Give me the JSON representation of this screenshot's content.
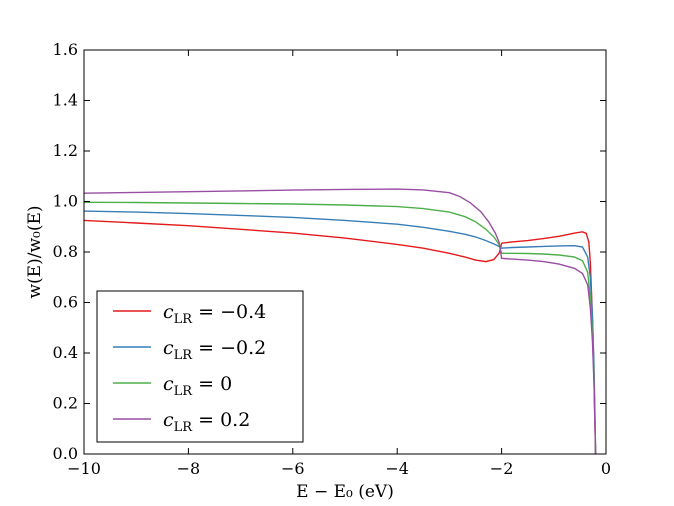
{
  "chart_data": {
    "type": "line",
    "xlabel": "E − E₀ (eV)",
    "ylabel": "w(E)/w₀(E)",
    "xlim": [
      -10,
      0
    ],
    "ylim": [
      0,
      1.6
    ],
    "xticks": [
      "−10",
      "−8",
      "−6",
      "−4",
      "−2",
      "0"
    ],
    "yticks": [
      "0.0",
      "0.2",
      "0.4",
      "0.6",
      "0.8",
      "1.0",
      "1.2",
      "1.4",
      "1.6"
    ],
    "legend_position": "lower-left",
    "series": [
      {
        "name": "c_LR = −0.4",
        "color": "#e41a1c",
        "x": [
          -10,
          -9,
          -8,
          -7,
          -6,
          -5,
          -4,
          -3.5,
          -3,
          -2.7,
          -2.5,
          -2.3,
          -2.15,
          -2.05,
          -2.02,
          -2.0,
          -1.8,
          -1.5,
          -1.2,
          -0.9,
          -0.6,
          -0.45,
          -0.38,
          -0.33,
          -0.3,
          -0.27,
          -0.24,
          -0.22,
          -0.2
        ],
        "y": [
          0.925,
          0.915,
          0.904,
          0.89,
          0.875,
          0.855,
          0.83,
          0.815,
          0.795,
          0.78,
          0.768,
          0.762,
          0.77,
          0.795,
          0.815,
          0.835,
          0.84,
          0.845,
          0.853,
          0.862,
          0.875,
          0.88,
          0.874,
          0.84,
          0.76,
          0.6,
          0.4,
          0.2,
          0.0
        ]
      },
      {
        "name": "c_LR = −0.2",
        "color": "#377eb8",
        "x": [
          -10,
          -9,
          -8,
          -7,
          -6,
          -5,
          -4,
          -3.5,
          -3,
          -2.7,
          -2.5,
          -2.3,
          -2.15,
          -2.05,
          -2.0,
          -1.8,
          -1.5,
          -1.2,
          -0.9,
          -0.6,
          -0.45,
          -0.35,
          -0.3,
          -0.26,
          -0.23,
          -0.21,
          -0.2
        ],
        "y": [
          0.962,
          0.958,
          0.952,
          0.945,
          0.937,
          0.925,
          0.91,
          0.898,
          0.882,
          0.87,
          0.86,
          0.845,
          0.832,
          0.822,
          0.815,
          0.818,
          0.82,
          0.822,
          0.824,
          0.825,
          0.82,
          0.78,
          0.7,
          0.55,
          0.35,
          0.15,
          0.0
        ]
      },
      {
        "name": "c_LR = 0",
        "color": "#4daf4a",
        "x": [
          -10,
          -9,
          -8,
          -7,
          -6,
          -5,
          -4,
          -3.5,
          -3,
          -2.7,
          -2.5,
          -2.3,
          -2.15,
          -2.05,
          -2.0,
          -1.8,
          -1.5,
          -1.2,
          -0.9,
          -0.6,
          -0.45,
          -0.35,
          -0.3,
          -0.26,
          -0.23,
          -0.21,
          -0.2
        ],
        "y": [
          0.997,
          0.996,
          0.994,
          0.992,
          0.99,
          0.986,
          0.98,
          0.972,
          0.958,
          0.94,
          0.92,
          0.89,
          0.86,
          0.83,
          0.795,
          0.795,
          0.794,
          0.792,
          0.788,
          0.78,
          0.765,
          0.72,
          0.62,
          0.48,
          0.3,
          0.12,
          0.0
        ]
      },
      {
        "name": "c_LR = 0.2",
        "color": "#984ea3",
        "x": [
          -10,
          -9,
          -8,
          -7,
          -6,
          -5,
          -4,
          -3.5,
          -3,
          -2.8,
          -2.6,
          -2.4,
          -2.25,
          -2.12,
          -2.05,
          -2.0,
          -1.8,
          -1.5,
          -1.2,
          -0.9,
          -0.6,
          -0.45,
          -0.35,
          -0.3,
          -0.26,
          -0.23,
          -0.21,
          -0.2
        ],
        "y": [
          1.033,
          1.036,
          1.039,
          1.042,
          1.045,
          1.048,
          1.049,
          1.046,
          1.035,
          1.02,
          0.995,
          0.96,
          0.92,
          0.875,
          0.84,
          0.775,
          0.772,
          0.768,
          0.762,
          0.752,
          0.735,
          0.715,
          0.67,
          0.58,
          0.45,
          0.28,
          0.1,
          0.0
        ]
      }
    ],
    "legend": [
      {
        "sym": "c",
        "sub": "LR",
        "rest": " = −0.4"
      },
      {
        "sym": "c",
        "sub": "LR",
        "rest": " = −0.2"
      },
      {
        "sym": "c",
        "sub": "LR",
        "rest": " = 0"
      },
      {
        "sym": "c",
        "sub": "LR",
        "rest": " = 0.2"
      }
    ]
  }
}
